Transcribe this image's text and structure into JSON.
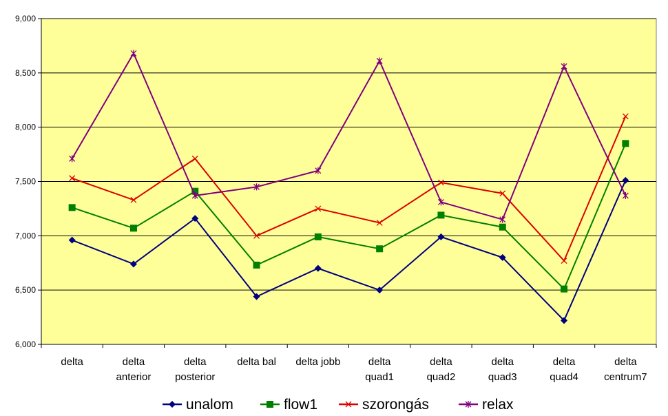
{
  "chart_data": {
    "type": "line",
    "categories": [
      [
        "delta"
      ],
      [
        "delta",
        "anterior"
      ],
      [
        "delta",
        "posterior"
      ],
      [
        "delta bal"
      ],
      [
        "delta jobb"
      ],
      [
        "delta",
        "quad1"
      ],
      [
        "delta",
        "quad2"
      ],
      [
        "delta",
        "quad3"
      ],
      [
        "delta",
        "quad4"
      ],
      [
        "delta",
        "centrum7"
      ]
    ],
    "y_ticks": [
      "6,000",
      "6,500",
      "7,000",
      "7,500",
      "8,000",
      "8,500",
      "9,000"
    ],
    "ylim": [
      6000,
      9000
    ],
    "y_step": 500,
    "grid": true,
    "legend_position": "bottom",
    "plot_background": "#ffff99",
    "series": [
      {
        "name": "unalom",
        "color": "#000080",
        "marker": "diamond",
        "values": [
          6960,
          6740,
          7160,
          6440,
          6700,
          6500,
          6990,
          6800,
          6220,
          7510
        ]
      },
      {
        "name": "flow1",
        "color": "#008000",
        "marker": "square",
        "values": [
          7260,
          7070,
          7410,
          6730,
          6990,
          6880,
          7190,
          7080,
          6510,
          7850
        ]
      },
      {
        "name": "szorongás",
        "color": "#dd0000",
        "marker": "x",
        "values": [
          7530,
          7330,
          7710,
          7000,
          7250,
          7120,
          7490,
          7390,
          6770,
          8100
        ]
      },
      {
        "name": "relax",
        "color": "#800080",
        "marker": "star",
        "values": [
          7710,
          8680,
          7370,
          7450,
          7600,
          8610,
          7310,
          7150,
          8560,
          7370
        ]
      }
    ]
  }
}
